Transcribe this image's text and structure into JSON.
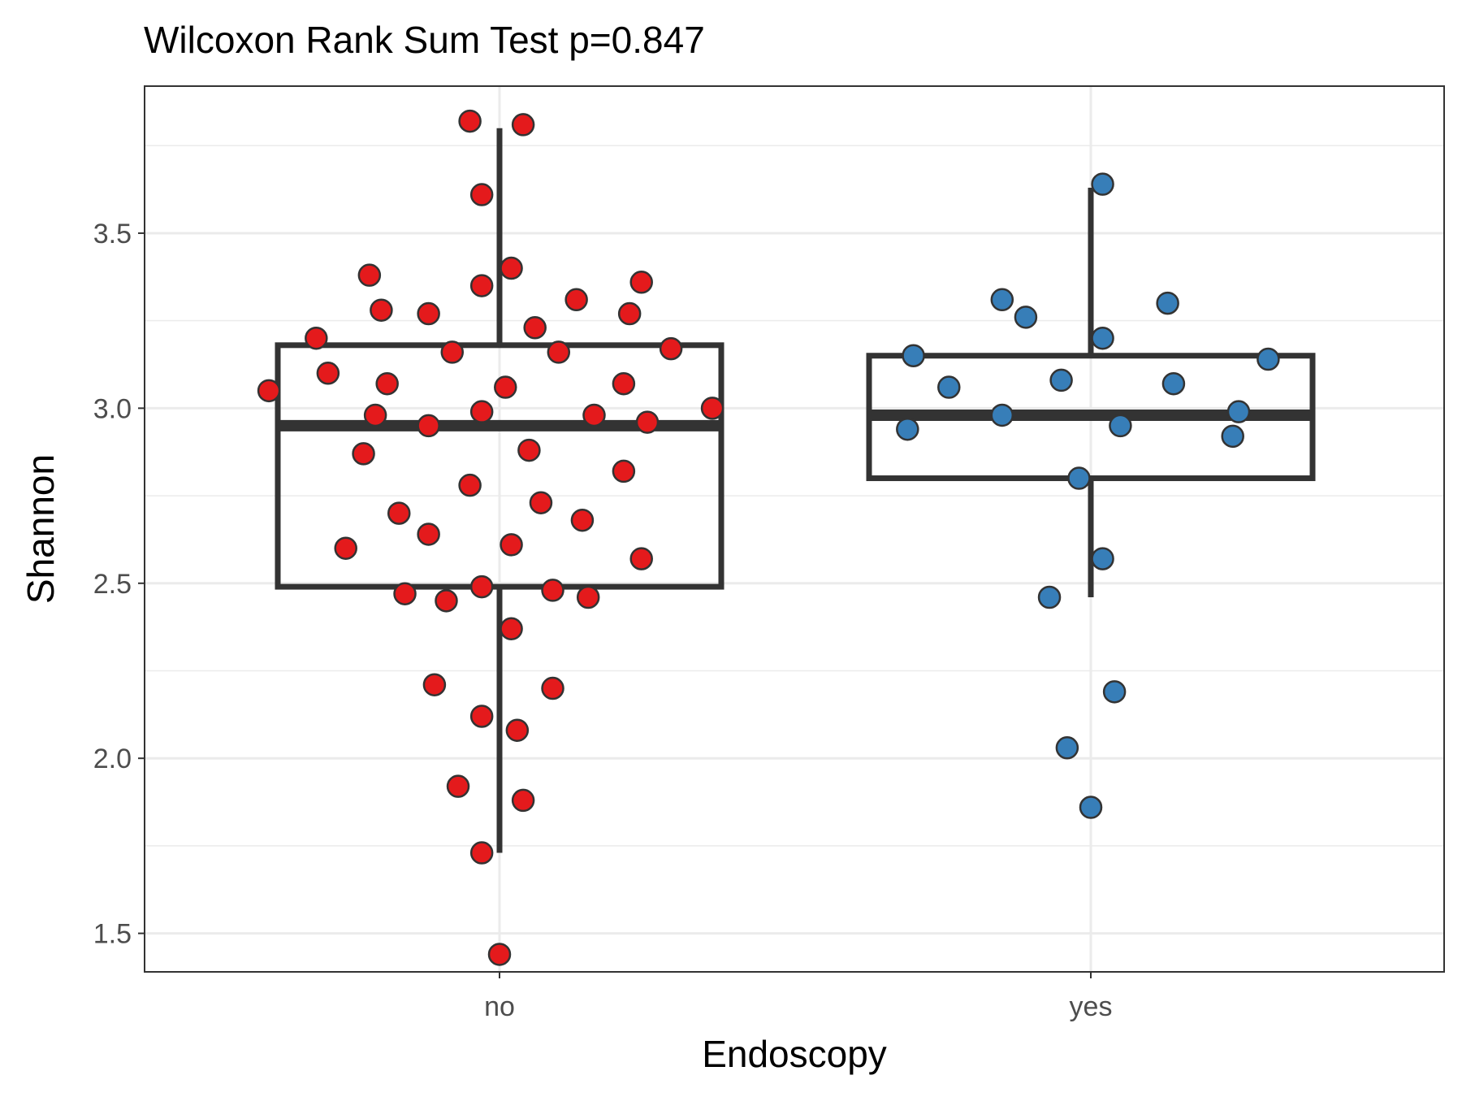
{
  "chart_data": {
    "type": "box",
    "title": "Wilcoxon Rank Sum Test p=0.847",
    "xlabel": "Endoscopy",
    "ylabel": "Shannon",
    "categories": [
      "no",
      "yes"
    ],
    "ylim": [
      1.39,
      3.92
    ],
    "yticks": [
      1.5,
      2.0,
      2.5,
      3.0,
      3.5
    ],
    "ytick_labels": [
      "1.5",
      "2.0",
      "2.5",
      "3.0",
      "3.5"
    ],
    "grid": true,
    "legend": "none",
    "colors": {
      "no": "#e41a1c",
      "yes": "#377eb8",
      "box": "#333333",
      "grid": "#ebebeb",
      "panel_border": "#333333",
      "point_outline": "#333333"
    },
    "boxes": [
      {
        "category": "no",
        "lower_whisker": 1.73,
        "q1": 2.49,
        "median": 2.95,
        "q3": 3.18,
        "upper_whisker": 3.8
      },
      {
        "category": "yes",
        "lower_whisker": 2.46,
        "q1": 2.8,
        "median": 2.98,
        "q3": 3.15,
        "upper_whisker": 3.63
      }
    ],
    "points": [
      {
        "category": "no",
        "x_offset": -0.05,
        "y": 3.82
      },
      {
        "category": "no",
        "x_offset": 0.04,
        "y": 3.81
      },
      {
        "category": "no",
        "x_offset": -0.03,
        "y": 3.61
      },
      {
        "category": "no",
        "x_offset": 0.02,
        "y": 3.4
      },
      {
        "category": "no",
        "x_offset": -0.22,
        "y": 3.38
      },
      {
        "category": "no",
        "x_offset": 0.24,
        "y": 3.36
      },
      {
        "category": "no",
        "x_offset": -0.03,
        "y": 3.35
      },
      {
        "category": "no",
        "x_offset": 0.13,
        "y": 3.31
      },
      {
        "category": "no",
        "x_offset": -0.2,
        "y": 3.28
      },
      {
        "category": "no",
        "x_offset": 0.22,
        "y": 3.27
      },
      {
        "category": "no",
        "x_offset": -0.12,
        "y": 3.27
      },
      {
        "category": "no",
        "x_offset": 0.06,
        "y": 3.23
      },
      {
        "category": "no",
        "x_offset": -0.31,
        "y": 3.2
      },
      {
        "category": "no",
        "x_offset": 0.29,
        "y": 3.17
      },
      {
        "category": "no",
        "x_offset": -0.08,
        "y": 3.16
      },
      {
        "category": "no",
        "x_offset": 0.1,
        "y": 3.16
      },
      {
        "category": "no",
        "x_offset": -0.29,
        "y": 3.1
      },
      {
        "category": "no",
        "x_offset": -0.19,
        "y": 3.07
      },
      {
        "category": "no",
        "x_offset": 0.21,
        "y": 3.07
      },
      {
        "category": "no",
        "x_offset": 0.01,
        "y": 3.06
      },
      {
        "category": "no",
        "x_offset": -0.39,
        "y": 3.05
      },
      {
        "category": "no",
        "x_offset": 0.36,
        "y": 3.0
      },
      {
        "category": "no",
        "x_offset": -0.03,
        "y": 2.99
      },
      {
        "category": "no",
        "x_offset": 0.16,
        "y": 2.98
      },
      {
        "category": "no",
        "x_offset": -0.21,
        "y": 2.98
      },
      {
        "category": "no",
        "x_offset": 0.25,
        "y": 2.96
      },
      {
        "category": "no",
        "x_offset": -0.12,
        "y": 2.95
      },
      {
        "category": "no",
        "x_offset": 0.05,
        "y": 2.88
      },
      {
        "category": "no",
        "x_offset": -0.23,
        "y": 2.87
      },
      {
        "category": "no",
        "x_offset": 0.21,
        "y": 2.82
      },
      {
        "category": "no",
        "x_offset": -0.05,
        "y": 2.78
      },
      {
        "category": "no",
        "x_offset": 0.07,
        "y": 2.73
      },
      {
        "category": "no",
        "x_offset": -0.17,
        "y": 2.7
      },
      {
        "category": "no",
        "x_offset": 0.14,
        "y": 2.68
      },
      {
        "category": "no",
        "x_offset": -0.12,
        "y": 2.64
      },
      {
        "category": "no",
        "x_offset": 0.02,
        "y": 2.61
      },
      {
        "category": "no",
        "x_offset": -0.26,
        "y": 2.6
      },
      {
        "category": "no",
        "x_offset": 0.24,
        "y": 2.57
      },
      {
        "category": "no",
        "x_offset": -0.03,
        "y": 2.49
      },
      {
        "category": "no",
        "x_offset": 0.09,
        "y": 2.48
      },
      {
        "category": "no",
        "x_offset": -0.16,
        "y": 2.47
      },
      {
        "category": "no",
        "x_offset": 0.15,
        "y": 2.46
      },
      {
        "category": "no",
        "x_offset": -0.09,
        "y": 2.45
      },
      {
        "category": "no",
        "x_offset": 0.02,
        "y": 2.37
      },
      {
        "category": "no",
        "x_offset": -0.11,
        "y": 2.21
      },
      {
        "category": "no",
        "x_offset": 0.09,
        "y": 2.2
      },
      {
        "category": "no",
        "x_offset": -0.03,
        "y": 2.12
      },
      {
        "category": "no",
        "x_offset": 0.03,
        "y": 2.08
      },
      {
        "category": "no",
        "x_offset": -0.07,
        "y": 1.92
      },
      {
        "category": "no",
        "x_offset": 0.04,
        "y": 1.88
      },
      {
        "category": "no",
        "x_offset": -0.03,
        "y": 1.73
      },
      {
        "category": "no",
        "x_offset": 0.0,
        "y": 1.44
      },
      {
        "category": "yes",
        "x_offset": 0.02,
        "y": 3.64
      },
      {
        "category": "yes",
        "x_offset": -0.15,
        "y": 3.31
      },
      {
        "category": "yes",
        "x_offset": 0.13,
        "y": 3.3
      },
      {
        "category": "yes",
        "x_offset": -0.11,
        "y": 3.26
      },
      {
        "category": "yes",
        "x_offset": 0.02,
        "y": 3.2
      },
      {
        "category": "yes",
        "x_offset": -0.3,
        "y": 3.15
      },
      {
        "category": "yes",
        "x_offset": 0.3,
        "y": 3.14
      },
      {
        "category": "yes",
        "x_offset": -0.05,
        "y": 3.08
      },
      {
        "category": "yes",
        "x_offset": 0.14,
        "y": 3.07
      },
      {
        "category": "yes",
        "x_offset": -0.24,
        "y": 3.06
      },
      {
        "category": "yes",
        "x_offset": 0.25,
        "y": 2.99
      },
      {
        "category": "yes",
        "x_offset": -0.15,
        "y": 2.98
      },
      {
        "category": "yes",
        "x_offset": 0.05,
        "y": 2.95
      },
      {
        "category": "yes",
        "x_offset": -0.31,
        "y": 2.94
      },
      {
        "category": "yes",
        "x_offset": 0.24,
        "y": 2.92
      },
      {
        "category": "yes",
        "x_offset": -0.02,
        "y": 2.8
      },
      {
        "category": "yes",
        "x_offset": 0.02,
        "y": 2.57
      },
      {
        "category": "yes",
        "x_offset": -0.07,
        "y": 2.46
      },
      {
        "category": "yes",
        "x_offset": 0.04,
        "y": 2.19
      },
      {
        "category": "yes",
        "x_offset": -0.04,
        "y": 2.03
      },
      {
        "category": "yes",
        "x_offset": 0.0,
        "y": 1.86
      }
    ]
  }
}
